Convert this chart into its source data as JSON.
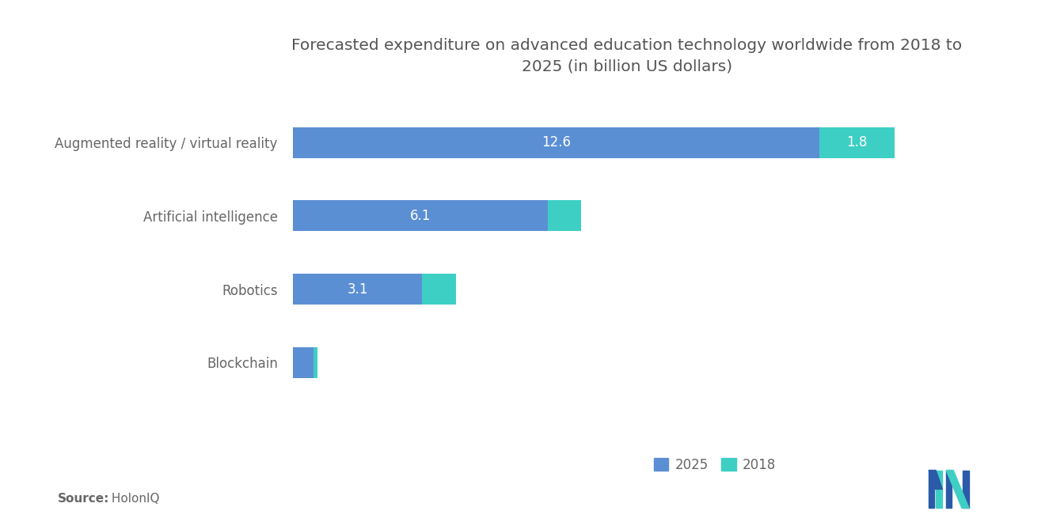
{
  "title": "Forecasted expenditure on advanced education technology worldwide from 2018 to\n2025 (in billion US dollars)",
  "categories": [
    "Augmented reality / virtual reality",
    "Artificial intelligence",
    "Robotics",
    "Blockchain"
  ],
  "values_2025": [
    12.6,
    6.1,
    3.1,
    0.5
  ],
  "values_2018": [
    1.8,
    0.8,
    0.8,
    0.1
  ],
  "labels_2025": [
    "12.6",
    "6.1",
    "3.1",
    ""
  ],
  "labels_2018": [
    "1.8",
    "",
    "",
    ""
  ],
  "color_2025": "#5B8FD4",
  "color_2018": "#3ECFC4",
  "background_color": "#ffffff",
  "title_fontsize": 14.5,
  "label_fontsize": 12,
  "tick_fontsize": 12,
  "source_bold": "Source:",
  "source_normal": " HolonIQ",
  "legend_labels": [
    "2025",
    "2018"
  ],
  "bar_height": 0.42,
  "xlim": [
    0,
    16
  ]
}
